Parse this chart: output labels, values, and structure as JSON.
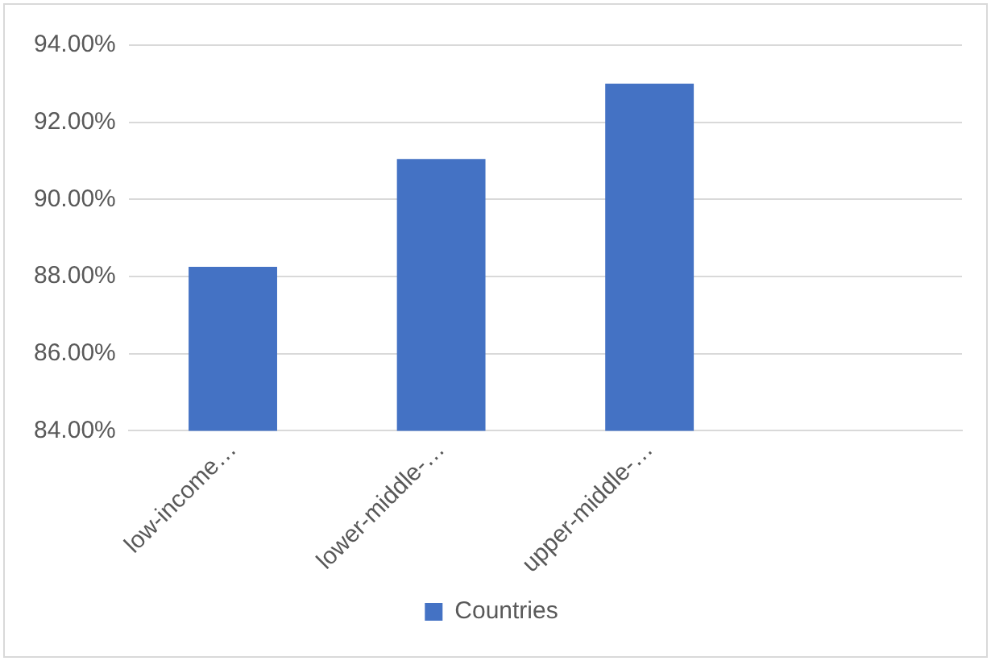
{
  "chart_data": {
    "type": "bar",
    "categories": [
      "low-income…",
      "lower-middle-…",
      "upper-middle-…",
      null
    ],
    "series": [
      {
        "name": "Countries",
        "color": "#4472c4",
        "values": [
          88.25,
          91.05,
          93.0,
          null
        ]
      }
    ],
    "ylim": [
      84,
      94
    ],
    "yticks": [
      {
        "value": 84,
        "label": "84.00%"
      },
      {
        "value": 86,
        "label": "86.00%"
      },
      {
        "value": 88,
        "label": "88.00%"
      },
      {
        "value": 90,
        "label": "90.00%"
      },
      {
        "value": 92,
        "label": "92.00%"
      },
      {
        "value": 94,
        "label": "94.00%"
      }
    ],
    "grid": "y",
    "legend": "bottom"
  }
}
